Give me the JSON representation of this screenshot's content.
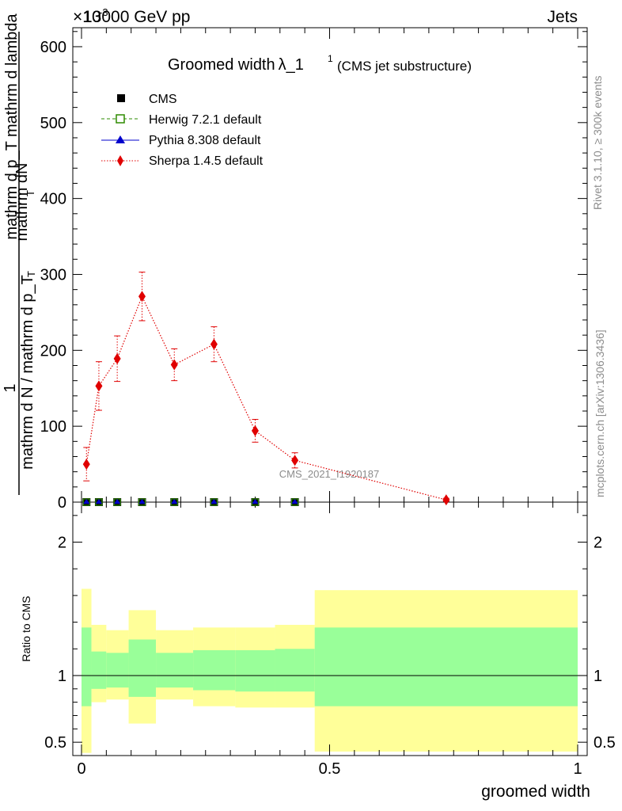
{
  "header": {
    "energy_label": "13000 GeV pp",
    "category_label": "Jets",
    "exponent_label": "×10",
    "exponent_power": "-3"
  },
  "title": {
    "main": "Groomed width",
    "symbol": "λ_1",
    "superscript": "1",
    "note": "(CMS jet substructure)"
  },
  "side_labels": {
    "rivet": "Rivet 3.1.10, ≥ 300k events",
    "mcplots": "mcplots.cern.ch [arXiv:1306.3436]"
  },
  "watermark": "CMS_2021_I1920187",
  "y_label": {
    "numerator": "mathrm dN",
    "one": "1",
    "denominator_top": "mathrm d p_T mathrm d lambda",
    "denominator_sub": "T",
    "denominator_bottom": "mathrm d N / mathrm d p_T",
    "denominator_bottom_sub": "T"
  },
  "legend": [
    {
      "label": "CMS",
      "color": "#000000",
      "marker": "filled-square"
    },
    {
      "label": "Herwig 7.2.1 default",
      "color": "#2e8b00",
      "marker": "open-square"
    },
    {
      "label": "Pythia 8.308 default",
      "color": "#0000cc",
      "marker": "triangle"
    },
    {
      "label": "Sherpa 1.4.5 default",
      "color": "#e00000",
      "marker": "diamond"
    }
  ],
  "ratio_panel": {
    "ylabel": "Ratio to CMS",
    "xlabel": "groomed width"
  },
  "chart_data": {
    "type": "line",
    "title": "Groomed width λ_1^1 (CMS jet substructure)",
    "xlabel": "groomed width",
    "ylabel": "1/N dN/dp_T dλ",
    "xlim": [
      0,
      1
    ],
    "ylim": [
      0,
      625
    ],
    "y_scale_factor": "1e-3",
    "main_y_ticks": [
      0,
      100,
      200,
      300,
      400,
      500,
      600
    ],
    "ratio_ylim": [
      0.4,
      2.3
    ],
    "ratio_y_ticks": [
      0.5,
      1,
      2
    ],
    "ratio_y_tick_labels": [
      "0.5",
      "1",
      "2"
    ],
    "x_ticks": [
      0,
      0.5,
      1
    ],
    "x_tick_labels": [
      "0",
      "0.5",
      "1"
    ],
    "bins": [
      [
        0.0,
        0.02
      ],
      [
        0.02,
        0.05
      ],
      [
        0.05,
        0.095
      ],
      [
        0.095,
        0.15
      ],
      [
        0.15,
        0.225
      ],
      [
        0.225,
        0.31
      ],
      [
        0.31,
        0.39
      ],
      [
        0.39,
        0.47
      ],
      [
        0.47,
        1.0
      ]
    ],
    "x": [
      0.01,
      0.035,
      0.072,
      0.122,
      0.187,
      0.267,
      0.35,
      0.43,
      0.735
    ],
    "series": [
      {
        "name": "CMS",
        "values": [
          0,
          0,
          0,
          0,
          0,
          0,
          0,
          0,
          0
        ]
      },
      {
        "name": "Herwig 7.2.1 default",
        "values": [
          0,
          0,
          0,
          0,
          0,
          0,
          0,
          0,
          0
        ]
      },
      {
        "name": "Pythia 8.308 default",
        "values": [
          0,
          0,
          0,
          0,
          0,
          0,
          0,
          0,
          0
        ]
      },
      {
        "name": "Sherpa 1.4.5 default",
        "values": [
          50,
          153,
          189,
          271,
          181,
          208,
          94,
          55,
          3
        ],
        "errors": [
          22,
          32,
          30,
          32,
          21,
          23,
          15,
          10,
          2
        ]
      }
    ],
    "ratio_bands": {
      "stat_low": [
        0.77,
        0.9,
        0.91,
        0.84,
        0.91,
        0.89,
        0.88,
        0.88,
        0.77
      ],
      "stat_high": [
        1.36,
        1.18,
        1.17,
        1.27,
        1.17,
        1.19,
        1.19,
        1.2,
        1.36
      ],
      "total_low": [
        0.42,
        0.8,
        0.82,
        0.64,
        0.82,
        0.77,
        0.76,
        0.76,
        0.43
      ],
      "total_high": [
        1.65,
        1.38,
        1.34,
        1.49,
        1.34,
        1.36,
        1.36,
        1.38,
        1.64
      ]
    }
  },
  "colors": {
    "band_inner": "#99ff99",
    "band_outer": "#ffff99",
    "sherpa": "#e00000",
    "herwig": "#2e8b00",
    "pythia": "#0000cc",
    "cms": "#000000",
    "watermark": "#8c8c8c"
  }
}
